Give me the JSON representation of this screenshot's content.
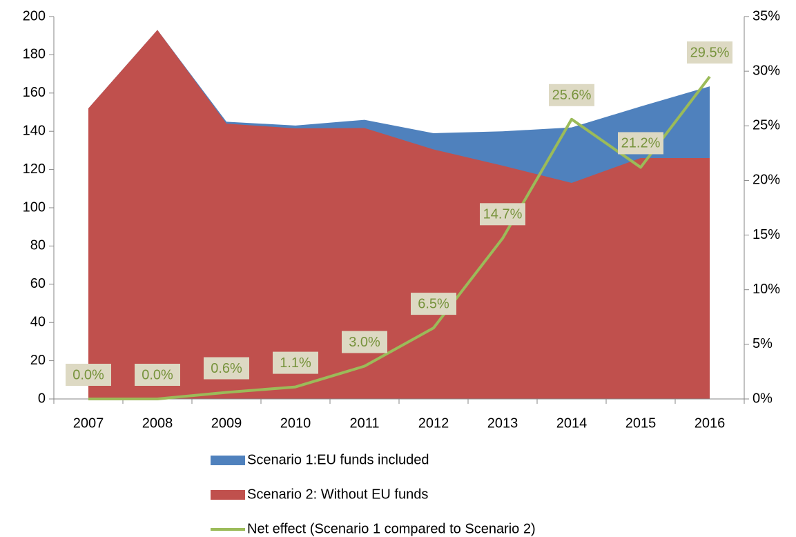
{
  "chart_data": {
    "type": "area",
    "categories": [
      "2007",
      "2008",
      "2009",
      "2010",
      "2011",
      "2012",
      "2013",
      "2014",
      "2015",
      "2016"
    ],
    "series": [
      {
        "name": "Scenario 1:EU funds included",
        "type": "area",
        "color": "#4f81bd",
        "values": [
          152,
          193,
          145,
          143,
          146,
          139,
          140,
          142,
          153,
          163.5
        ]
      },
      {
        "name": "Scenario 2: Without EU funds",
        "type": "area",
        "color": "#c0504d",
        "values": [
          152,
          193,
          144,
          141.5,
          141.7,
          130.5,
          122,
          113,
          126,
          126
        ]
      },
      {
        "name": "Net effect (Scenario 1 compared to Scenario 2)",
        "type": "line",
        "axis": "y2",
        "color": "#9bbb59",
        "values": [
          0,
          0,
          0.6,
          1.1,
          3.0,
          6.5,
          14.7,
          25.6,
          21.2,
          29.5
        ],
        "value_labels": [
          "0.0%",
          "0.0%",
          "0.6%",
          "1.1%",
          "3.0%",
          "6.5%",
          "14.7%",
          "25.6%",
          "21.2%",
          "29.5%"
        ]
      }
    ],
    "ylim": [
      0,
      200
    ],
    "yticks": [
      0,
      20,
      40,
      60,
      80,
      100,
      120,
      140,
      160,
      180,
      200
    ],
    "y2lim": [
      0,
      35
    ],
    "y2ticks": [
      {
        "value": 0,
        "label": "0%"
      },
      {
        "value": 5,
        "label": "5%"
      },
      {
        "value": 10,
        "label": "10%"
      },
      {
        "value": 15,
        "label": "15%"
      },
      {
        "value": 20,
        "label": "20%"
      },
      {
        "value": 25,
        "label": "25%"
      },
      {
        "value": 30,
        "label": "30%"
      },
      {
        "value": 35,
        "label": "35%"
      }
    ],
    "legend": "bottom"
  }
}
